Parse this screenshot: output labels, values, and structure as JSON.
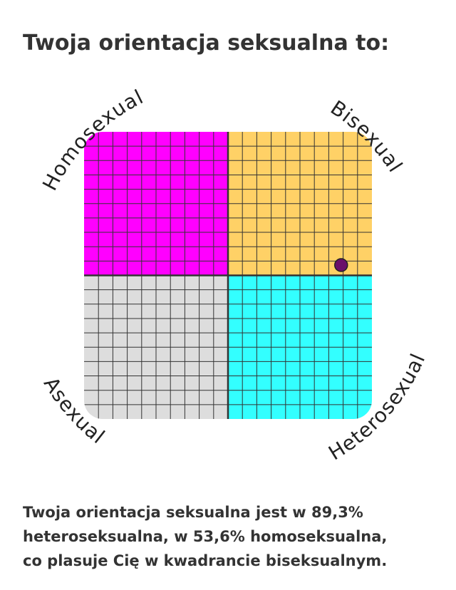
{
  "header": {
    "title": "Twoja orientacja seksualna to:"
  },
  "quadrant_chart": {
    "labels": {
      "top_left": "Homosexual",
      "top_right": "Bisexual",
      "bottom_left": "Asexual",
      "bottom_right": "Heterosexual"
    },
    "colors": {
      "top_left": "#ff00ff",
      "top_right": "#ffd166",
      "bottom_left": "#dddddd",
      "bottom_right": "#33ffff"
    },
    "point": {
      "heterosexual": 89.3,
      "homosexual": 53.6,
      "color": "#6a0f6a"
    },
    "xlim": [
      0,
      100
    ],
    "ylim": [
      0,
      100
    ]
  },
  "result": {
    "lines": [
      "Twoja orientacja seksualna jest w 89,3%",
      "heteroseksualna, w 53,6% homoseksualna,",
      "co plasuje Cię w kwadrancie biseksualnym."
    ]
  }
}
